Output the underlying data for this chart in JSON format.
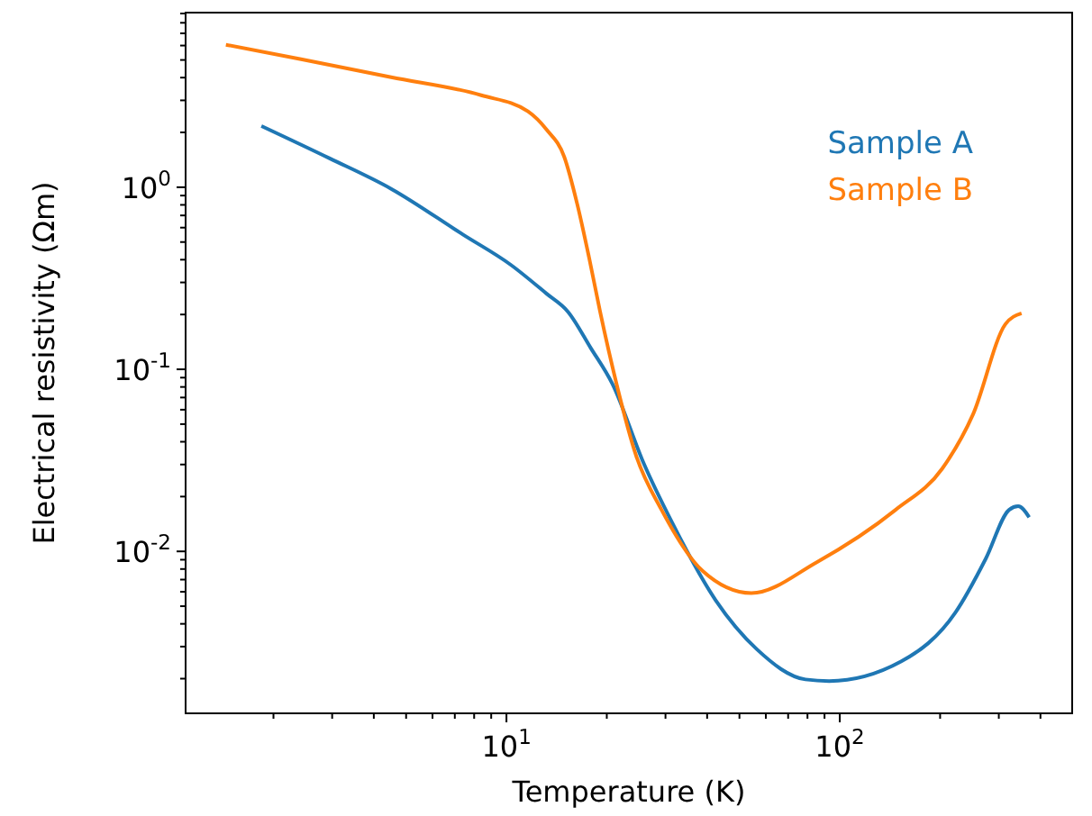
{
  "chart_data": {
    "type": "line",
    "xlabel": "Temperature (K)",
    "ylabel": "Electrical resistivity (Ωm)",
    "log": "xy",
    "legend": "top right",
    "grid": false,
    "xlim": [
      1.09,
      498
    ],
    "ylim": [
      0.00129,
      9.1
    ],
    "xticks": [
      {
        "value": 2,
        "label": null
      },
      {
        "value": 3,
        "label": null
      },
      {
        "value": 4,
        "label": null
      },
      {
        "value": 5,
        "label": null
      },
      {
        "value": 6,
        "label": null
      },
      {
        "value": 7,
        "label": null
      },
      {
        "value": 8,
        "label": null
      },
      {
        "value": 9,
        "label": null
      },
      {
        "value": 10,
        "label": "10$^{1}$"
      },
      {
        "value": 20,
        "label": null
      },
      {
        "value": 30,
        "label": null
      },
      {
        "value": 40,
        "label": null
      },
      {
        "value": 50,
        "label": null
      },
      {
        "value": 60,
        "label": null
      },
      {
        "value": 70,
        "label": null
      },
      {
        "value": 80,
        "label": null
      },
      {
        "value": 90,
        "label": null
      },
      {
        "value": 100,
        "label": "10$^{2}$"
      },
      {
        "value": 200,
        "label": null
      },
      {
        "value": 300,
        "label": null
      },
      {
        "value": 400,
        "label": null
      }
    ],
    "yticks": [
      {
        "value": 0.002,
        "label": null
      },
      {
        "value": 0.003,
        "label": null
      },
      {
        "value": 0.004,
        "label": null
      },
      {
        "value": 0.005,
        "label": null
      },
      {
        "value": 0.006,
        "label": null
      },
      {
        "value": 0.007,
        "label": null
      },
      {
        "value": 0.008,
        "label": null
      },
      {
        "value": 0.009,
        "label": null
      },
      {
        "value": 0.01,
        "label": "10$^{-2}$"
      },
      {
        "value": 0.02,
        "label": null
      },
      {
        "value": 0.03,
        "label": null
      },
      {
        "value": 0.04,
        "label": null
      },
      {
        "value": 0.05,
        "label": null
      },
      {
        "value": 0.06,
        "label": null
      },
      {
        "value": 0.07,
        "label": null
      },
      {
        "value": 0.08,
        "label": null
      },
      {
        "value": 0.09,
        "label": null
      },
      {
        "value": 0.1,
        "label": "10$^{-1}$"
      },
      {
        "value": 0.2,
        "label": null
      },
      {
        "value": 0.3,
        "label": null
      },
      {
        "value": 0.4,
        "label": null
      },
      {
        "value": 0.5,
        "label": null
      },
      {
        "value": 0.6,
        "label": null
      },
      {
        "value": 0.7,
        "label": null
      },
      {
        "value": 0.8,
        "label": null
      },
      {
        "value": 0.9,
        "label": null
      },
      {
        "value": 1,
        "label": "10$^{0}$"
      },
      {
        "value": 2,
        "label": null
      },
      {
        "value": 3,
        "label": null
      },
      {
        "value": 4,
        "label": null
      },
      {
        "value": 5,
        "label": null
      },
      {
        "value": 6,
        "label": null
      },
      {
        "value": 7,
        "label": null
      },
      {
        "value": 8,
        "label": null
      },
      {
        "value": 9,
        "label": null
      }
    ],
    "series": [
      {
        "name": "Sample A",
        "color": "#1f77b4",
        "x": [
          1.84,
          2.95,
          4.51,
          7.4,
          10.3,
          13.2,
          15.3,
          17.9,
          20.8,
          25.8,
          31.4,
          42.4,
          56.4,
          78.9,
          92.9,
          153,
          222,
          274,
          322,
          343,
          370
        ],
        "values": [
          2.17,
          1.44,
          0.98,
          0.55,
          0.375,
          0.26,
          0.207,
          0.131,
          0.083,
          0.0305,
          0.0144,
          0.0054,
          0.0029,
          0.00198,
          0.00194,
          0.00249,
          0.0046,
          0.0091,
          0.0169,
          0.0177,
          0.0154
        ]
      },
      {
        "name": "Sample B",
        "color": "#ff7f0e",
        "x": [
          1.44,
          2.42,
          4.51,
          8.4,
          11.6,
          13.2,
          14.9,
          16.3,
          17.7,
          19.1,
          21.4,
          24.5,
          29.2,
          38.8,
          54.3,
          85.1,
          147,
          203,
          251,
          314,
          351
        ],
        "values": [
          6.06,
          5.05,
          4.02,
          3.2,
          2.61,
          2.07,
          1.47,
          0.81,
          0.41,
          0.207,
          0.083,
          0.0335,
          0.0169,
          0.0078,
          0.0059,
          0.0087,
          0.0169,
          0.0285,
          0.0565,
          0.177,
          0.203
        ]
      }
    ]
  }
}
